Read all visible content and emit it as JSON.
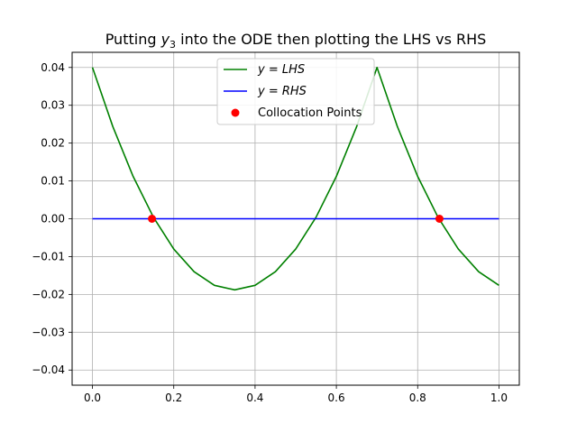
{
  "chart_data": {
    "type": "line",
    "title": {
      "prefix": "Putting ",
      "var_main": "y",
      "var_sub": "3",
      "suffix": " into the ODE then plotting the LHS vs RHS"
    },
    "xlabel": "",
    "ylabel": "",
    "xlim": [
      -0.05,
      1.05
    ],
    "ylim": [
      -0.044,
      0.044
    ],
    "grid": true,
    "legend_position": "top-center",
    "x_ticks": [
      {
        "value": 0.0,
        "label": "0.0"
      },
      {
        "value": 0.2,
        "label": "0.2"
      },
      {
        "value": 0.4,
        "label": "0.4"
      },
      {
        "value": 0.6,
        "label": "0.6"
      },
      {
        "value": 0.8,
        "label": "0.8"
      },
      {
        "value": 1.0,
        "label": "1.0"
      }
    ],
    "y_ticks": [
      {
        "value": 0.04,
        "label": "0.04"
      },
      {
        "value": 0.03,
        "label": "0.03"
      },
      {
        "value": 0.02,
        "label": "0.02"
      },
      {
        "value": 0.01,
        "label": "0.01"
      },
      {
        "value": 0.0,
        "label": "0.00"
      },
      {
        "value": -0.01,
        "label": "−0.01"
      },
      {
        "value": -0.02,
        "label": "−0.02"
      },
      {
        "value": -0.03,
        "label": "−0.03"
      },
      {
        "value": -0.04,
        "label": "−0.04"
      }
    ],
    "series": [
      {
        "name": "y = LHS",
        "legend": {
          "pre": "y",
          "eq": " = ",
          "post": "LHS"
        },
        "color": "#008000",
        "style": "line",
        "x": [
          0.0,
          0.05,
          0.1,
          0.15,
          0.2,
          0.25,
          0.3,
          0.35,
          0.4,
          0.45,
          0.5,
          0.55,
          0.6,
          0.65,
          0.7,
          0.75,
          0.8,
          0.85,
          0.9,
          0.95,
          1.0
        ],
        "values": [
          0.04,
          0.0244,
          0.0112,
          0.0004,
          -0.008,
          -0.014,
          -0.0176,
          -0.0188,
          -0.0176,
          -0.014,
          -0.008,
          0.0004,
          0.0112,
          0.0244,
          0.04,
          0.0244,
          0.0112,
          0.0004,
          -0.008,
          -0.014,
          -0.0176
        ]
      },
      {
        "name": "y = RHS",
        "legend": {
          "pre": "y",
          "eq": " = ",
          "post": "RHS"
        },
        "color": "#0000ff",
        "style": "line",
        "x": [
          0.0,
          1.0
        ],
        "values": [
          0.0,
          0.0
        ]
      },
      {
        "name": "Collocation Points",
        "legend": {
          "text": "Collocation Points"
        },
        "color": "#ff0000",
        "style": "markers",
        "x": [
          0.1464,
          0.8536
        ],
        "values": [
          0.0,
          0.0
        ]
      }
    ]
  }
}
